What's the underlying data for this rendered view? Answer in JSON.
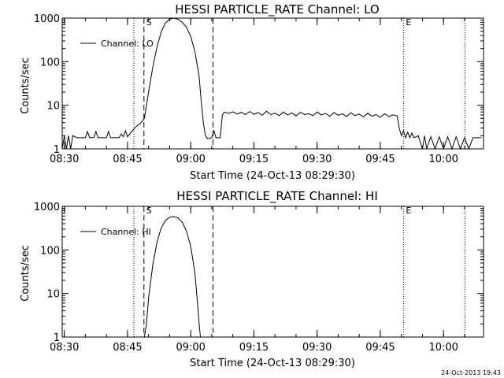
{
  "footer": {
    "stamp": "24-Oct-2013 19:43"
  },
  "chart_data": [
    {
      "type": "line",
      "title": "HESSI PARTICLE_RATE Channel: LO",
      "xlabel": "Start Time (24-Oct-13 08:29:30)",
      "ylabel": "Counts/sec",
      "yscale": "log",
      "ylim": [
        1,
        1000
      ],
      "xlim": [
        "08:29:30",
        "10:09:30"
      ],
      "x_ticks": [
        "08:30",
        "08:45",
        "09:00",
        "09:15",
        "09:30",
        "09:45",
        "10:00"
      ],
      "y_ticks": [
        "1",
        "10",
        "100",
        "1000"
      ],
      "legend": {
        "position": "top-left",
        "entries": [
          "Channel: LO"
        ]
      },
      "markers": [
        {
          "time": "08:48.9",
          "style": "dashed",
          "label": "S"
        },
        {
          "time": "09:05.3",
          "style": "dashed",
          "label": ""
        },
        {
          "time": "08:46.5",
          "style": "dotted",
          "label": ""
        },
        {
          "time": "09:50.5",
          "style": "dotted",
          "label": "E"
        },
        {
          "time": "10:05.1",
          "style": "dotted",
          "label": ""
        }
      ],
      "series": [
        {
          "name": "Channel: LO",
          "points": [
            [
              "08:29.5",
              1.0
            ],
            [
              "08:30.0",
              2.0
            ],
            [
              "08:30.5",
              1.0
            ],
            [
              "08:31.0",
              2.0
            ],
            [
              "08:31.5",
              1.0
            ],
            [
              "08:32.0",
              2.0
            ],
            [
              "08:33.0",
              1.8
            ],
            [
              "08:35.0",
              1.8
            ],
            [
              "08:35.5",
              2.5
            ],
            [
              "08:36.0",
              1.8
            ],
            [
              "08:37.0",
              1.8
            ],
            [
              "08:37.5",
              2.5
            ],
            [
              "08:38.0",
              1.8
            ],
            [
              "08:40.0",
              1.8
            ],
            [
              "08:40.5",
              2.5
            ],
            [
              "08:41.0",
              1.8
            ],
            [
              "08:43.0",
              1.8
            ],
            [
              "08:43.5",
              2.2
            ],
            [
              "08:44.0",
              1.9
            ],
            [
              "08:44.5",
              2.6
            ],
            [
              "08:45.0",
              1.9
            ],
            [
              "08:46.0",
              2.5
            ],
            [
              "08:47.0",
              3.2
            ],
            [
              "08:48.0",
              3.8
            ],
            [
              "08:49.0",
              5.0
            ],
            [
              "08:50.0",
              20.0
            ],
            [
              "08:51.0",
              75.0
            ],
            [
              "08:52.0",
              220.0
            ],
            [
              "08:53.0",
              480.0
            ],
            [
              "08:54.0",
              780.0
            ],
            [
              "08:55.0",
              950.0
            ],
            [
              "08:56.0",
              1000.0
            ],
            [
              "08:57.0",
              940.0
            ],
            [
              "08:58.0",
              800.0
            ],
            [
              "08:59.0",
              620.0
            ],
            [
              "09:00.0",
              380.0
            ],
            [
              "09:01.0",
              170.0
            ],
            [
              "09:02.0",
              45.0
            ],
            [
              "09:02.5",
              12.0
            ],
            [
              "09:03.0",
              4.0
            ],
            [
              "09:03.5",
              2.0
            ],
            [
              "09:04.0",
              1.7
            ],
            [
              "09:05.0",
              1.8
            ],
            [
              "09:05.5",
              2.6
            ],
            [
              "09:06.0",
              1.8
            ],
            [
              "09:07.0",
              1.8
            ],
            [
              "09:07.5",
              6.0
            ],
            [
              "09:08.0",
              7.0
            ],
            [
              "09:09.0",
              6.5
            ],
            [
              "09:10.0",
              7.1
            ],
            [
              "09:11.0",
              6.3
            ],
            [
              "09:12.0",
              6.9
            ],
            [
              "09:13.0",
              6.1
            ],
            [
              "09:14.0",
              7.2
            ],
            [
              "09:15.0",
              6.2
            ],
            [
              "09:16.0",
              6.8
            ],
            [
              "09:17.0",
              5.9
            ],
            [
              "09:18.0",
              7.3
            ],
            [
              "09:19.0",
              6.1
            ],
            [
              "09:20.0",
              6.6
            ],
            [
              "09:21.0",
              5.8
            ],
            [
              "09:22.0",
              7.0
            ],
            [
              "09:23.0",
              6.0
            ],
            [
              "09:24.0",
              6.7
            ],
            [
              "09:25.0",
              5.7
            ],
            [
              "09:26.0",
              6.9
            ],
            [
              "09:27.0",
              6.1
            ],
            [
              "09:28.0",
              6.4
            ],
            [
              "09:29.0",
              5.8
            ],
            [
              "09:30.0",
              7.0
            ],
            [
              "09:31.0",
              6.0
            ],
            [
              "09:32.0",
              6.5
            ],
            [
              "09:33.0",
              5.6
            ],
            [
              "09:34.0",
              6.8
            ],
            [
              "09:35.0",
              5.9
            ],
            [
              "09:36.0",
              6.4
            ],
            [
              "09:37.0",
              5.5
            ],
            [
              "09:38.0",
              6.7
            ],
            [
              "09:39.0",
              5.8
            ],
            [
              "09:40.0",
              6.3
            ],
            [
              "09:41.0",
              5.4
            ],
            [
              "09:42.0",
              6.6
            ],
            [
              "09:43.0",
              5.6
            ],
            [
              "09:44.0",
              6.1
            ],
            [
              "09:45.0",
              5.3
            ],
            [
              "09:46.0",
              6.4
            ],
            [
              "09:47.0",
              5.5
            ],
            [
              "09:48.0",
              6.0
            ],
            [
              "09:49.0",
              5.7
            ],
            [
              "09:49.5",
              3.0
            ],
            [
              "09:50.0",
              2.0
            ],
            [
              "09:50.5",
              2.6
            ],
            [
              "09:51.0",
              1.8
            ],
            [
              "09:51.5",
              2.4
            ],
            [
              "09:52.0",
              1.8
            ],
            [
              "09:52.5",
              2.3
            ],
            [
              "09:53.0",
              1.8
            ],
            [
              "09:54.0",
              2.0
            ],
            [
              "09:55.0",
              1.0
            ],
            [
              "09:55.5",
              2.0
            ],
            [
              "09:56.0",
              1.0
            ],
            [
              "09:57.0",
              1.9
            ],
            [
              "09:58.0",
              1.0
            ],
            [
              "09:59.0",
              1.9
            ],
            [
              "10:00.0",
              1.0
            ],
            [
              "10:01.0",
              1.9
            ],
            [
              "10:02.0",
              1.0
            ],
            [
              "10:03.0",
              1.9
            ],
            [
              "10:04.0",
              1.0
            ],
            [
              "10:05.0",
              1.8
            ],
            [
              "10:06.0",
              1.0
            ],
            [
              "10:07.0",
              1.8
            ],
            [
              "10:08.0",
              1.8
            ],
            [
              "10:09.0",
              1.8
            ]
          ]
        }
      ]
    },
    {
      "type": "line",
      "title": "HESSI PARTICLE_RATE Channel: HI",
      "xlabel": "Start Time (24-Oct-13 08:29:30)",
      "ylabel": "Counts/sec",
      "yscale": "log",
      "ylim": [
        1,
        1000
      ],
      "xlim": [
        "08:29:30",
        "10:09:30"
      ],
      "x_ticks": [
        "08:30",
        "08:45",
        "09:00",
        "09:15",
        "09:30",
        "09:45",
        "10:00"
      ],
      "y_ticks": [
        "1",
        "10",
        "100",
        "1000"
      ],
      "legend": {
        "position": "top-left",
        "entries": [
          "Channel: HI"
        ]
      },
      "markers": [
        {
          "time": "08:48.9",
          "style": "dashed",
          "label": "S"
        },
        {
          "time": "09:05.3",
          "style": "dashed",
          "label": ""
        },
        {
          "time": "08:46.5",
          "style": "dotted",
          "label": ""
        },
        {
          "time": "09:50.5",
          "style": "dotted",
          "label": "E"
        },
        {
          "time": "10:05.1",
          "style": "dotted",
          "label": ""
        }
      ],
      "series": [
        {
          "name": "Channel: HI",
          "points": [
            [
              "08:49.0",
              1.0
            ],
            [
              "08:49.5",
              2.0
            ],
            [
              "08:50.0",
              8.0
            ],
            [
              "08:51.0",
              45.0
            ],
            [
              "08:52.0",
              150.0
            ],
            [
              "08:53.0",
              320.0
            ],
            [
              "08:54.0",
              470.0
            ],
            [
              "08:55.0",
              560.0
            ],
            [
              "08:56.0",
              580.0
            ],
            [
              "08:57.0",
              540.0
            ],
            [
              "08:58.0",
              430.0
            ],
            [
              "08:59.0",
              270.0
            ],
            [
              "09:00.0",
              120.0
            ],
            [
              "09:01.0",
              30.0
            ],
            [
              "09:01.5",
              8.0
            ],
            [
              "09:02.0",
              2.0
            ],
            [
              "09:02.3",
              1.0
            ]
          ]
        }
      ]
    }
  ]
}
